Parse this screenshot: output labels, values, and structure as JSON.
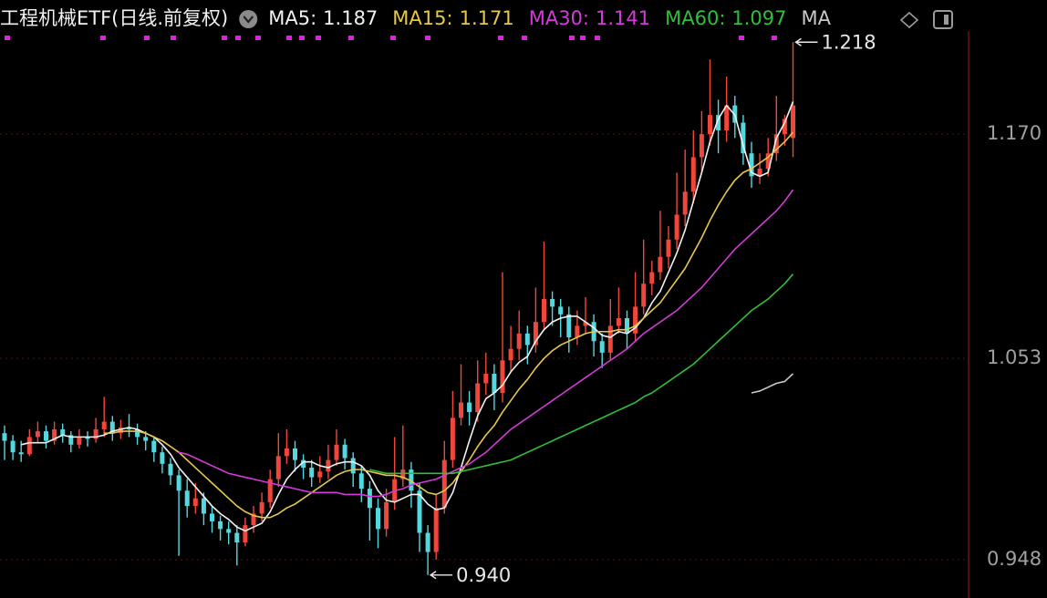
{
  "chart_data": {
    "type": "candlestick",
    "title": "工程机械ETF(日线.前复权)",
    "up_color": "#f0463c",
    "down_color": "#54d8e0",
    "ylim": [
      0.928,
      1.24
    ],
    "yticks": [
      0.948,
      1.053,
      {
        "value": 1.17,
        "label": "1.170"
      }
    ],
    "grid": true,
    "annotations": [
      {
        "value": 1.218,
        "label": "1.218",
        "at": "high"
      },
      {
        "value": 0.94,
        "label": "0.940",
        "at": "low"
      }
    ],
    "ohlc": [
      [
        1.014,
        1.018,
        1.0,
        1.01
      ],
      [
        1.01,
        1.013,
        1.0,
        1.004
      ],
      [
        1.004,
        1.01,
        0.999,
        1.003
      ],
      [
        1.003,
        1.016,
        1.002,
        1.012
      ],
      [
        1.012,
        1.02,
        1.009,
        1.015
      ],
      [
        1.015,
        1.018,
        1.006,
        1.01
      ],
      [
        1.01,
        1.02,
        1.008,
        1.016
      ],
      [
        1.016,
        1.019,
        1.009,
        1.013
      ],
      [
        1.013,
        1.015,
        1.004,
        1.008
      ],
      [
        1.008,
        1.016,
        1.006,
        1.012
      ],
      [
        1.012,
        1.015,
        1.007,
        1.011
      ],
      [
        1.011,
        1.022,
        1.009,
        1.016
      ],
      [
        1.016,
        1.033,
        1.012,
        1.02
      ],
      [
        1.02,
        1.023,
        1.01,
        1.014
      ],
      [
        1.014,
        1.021,
        1.011,
        1.017
      ],
      [
        1.017,
        1.024,
        1.012,
        1.016
      ],
      [
        1.016,
        1.019,
        1.008,
        1.012
      ],
      [
        1.012,
        1.015,
        1.005,
        1.01
      ],
      [
        1.01,
        1.012,
        0.999,
        1.004
      ],
      [
        1.004,
        1.007,
        0.993,
        0.998
      ],
      [
        0.998,
        1.001,
        0.987,
        0.992
      ],
      [
        0.992,
        0.995,
        0.95,
        0.984
      ],
      [
        0.984,
        0.99,
        0.97,
        0.976
      ],
      [
        0.976,
        0.988,
        0.972,
        0.98
      ],
      [
        0.98,
        0.983,
        0.966,
        0.972
      ],
      [
        0.972,
        0.976,
        0.962,
        0.968
      ],
      [
        0.968,
        0.971,
        0.958,
        0.964
      ],
      [
        0.964,
        0.968,
        0.956,
        0.962
      ],
      [
        0.962,
        0.966,
        0.945,
        0.957
      ],
      [
        0.957,
        0.97,
        0.955,
        0.966
      ],
      [
        0.966,
        0.976,
        0.962,
        0.972
      ],
      [
        0.972,
        0.983,
        0.968,
        0.978
      ],
      [
        0.978,
        0.995,
        0.975,
        0.99
      ],
      [
        0.99,
        1.014,
        0.986,
        1.002
      ],
      [
        1.002,
        1.016,
        0.998,
        1.006
      ],
      [
        1.006,
        1.01,
        0.994,
        1.0
      ],
      [
        1.0,
        1.003,
        0.99,
        0.996
      ],
      [
        0.996,
        1.0,
        0.986,
        0.991
      ],
      [
        0.991,
        1.002,
        0.988,
        0.994
      ],
      [
        0.994,
        1.008,
        0.99,
        1.0
      ],
      [
        1.0,
        1.016,
        0.997,
        1.008
      ],
      [
        1.008,
        1.011,
        0.995,
        1.001
      ],
      [
        1.001,
        1.004,
        0.986,
        0.993
      ],
      [
        0.993,
        0.997,
        0.978,
        0.985
      ],
      [
        0.985,
        0.989,
        0.958,
        0.975
      ],
      [
        0.975,
        0.98,
        0.954,
        0.964
      ],
      [
        0.964,
        0.985,
        0.96,
        0.978
      ],
      [
        0.978,
        1.012,
        0.974,
        0.99
      ],
      [
        0.99,
        1.018,
        0.986,
        0.995
      ],
      [
        0.995,
        0.999,
        0.975,
        0.984
      ],
      [
        0.984,
        0.988,
        0.952,
        0.962
      ],
      [
        0.962,
        0.966,
        0.94,
        0.952
      ],
      [
        0.952,
        0.982,
        0.948,
        0.975
      ],
      [
        0.975,
        1.01,
        0.972,
        1.0
      ],
      [
        1.0,
        1.036,
        0.996,
        1.022
      ],
      [
        1.022,
        1.05,
        1.018,
        1.03
      ],
      [
        1.03,
        1.036,
        1.018,
        1.025
      ],
      [
        1.025,
        1.052,
        1.02,
        1.04
      ],
      [
        1.04,
        1.056,
        1.034,
        1.045
      ],
      [
        1.045,
        1.05,
        1.026,
        1.035
      ],
      [
        1.035,
        1.098,
        1.03,
        1.052
      ],
      [
        1.052,
        1.07,
        1.046,
        1.058
      ],
      [
        1.058,
        1.078,
        1.052,
        1.066
      ],
      [
        1.066,
        1.07,
        1.05,
        1.06
      ],
      [
        1.06,
        1.09,
        1.056,
        1.072
      ],
      [
        1.072,
        1.114,
        1.068,
        1.084
      ],
      [
        1.084,
        1.088,
        1.07,
        1.08
      ],
      [
        1.08,
        1.084,
        1.064,
        1.076
      ],
      [
        1.076,
        1.08,
        1.056,
        1.064
      ],
      [
        1.064,
        1.078,
        1.06,
        1.07
      ],
      [
        1.07,
        1.085,
        1.066,
        1.072
      ],
      [
        1.072,
        1.076,
        1.054,
        1.062
      ],
      [
        1.062,
        1.066,
        1.048,
        1.056
      ],
      [
        1.056,
        1.084,
        1.052,
        1.07
      ],
      [
        1.07,
        1.09,
        1.066,
        1.074
      ],
      [
        1.074,
        1.078,
        1.058,
        1.066
      ],
      [
        1.066,
        1.098,
        1.062,
        1.08
      ],
      [
        1.08,
        1.115,
        1.076,
        1.092
      ],
      [
        1.092,
        1.104,
        1.086,
        1.098
      ],
      [
        1.098,
        1.13,
        1.094,
        1.106
      ],
      [
        1.106,
        1.122,
        1.1,
        1.115
      ],
      [
        1.115,
        1.15,
        1.11,
        1.128
      ],
      [
        1.128,
        1.162,
        1.122,
        1.14
      ],
      [
        1.14,
        1.172,
        1.134,
        1.158
      ],
      [
        1.158,
        1.182,
        1.15,
        1.17
      ],
      [
        1.17,
        1.209,
        1.164,
        1.18
      ],
      [
        1.18,
        1.188,
        1.16,
        1.172
      ],
      [
        1.172,
        1.2,
        1.166,
        1.185
      ],
      [
        1.185,
        1.19,
        1.168,
        1.176
      ],
      [
        1.176,
        1.18,
        1.154,
        1.16
      ],
      [
        1.16,
        1.166,
        1.142,
        1.148
      ],
      [
        1.148,
        1.16,
        1.144,
        1.152
      ],
      [
        1.152,
        1.168,
        1.148,
        1.16
      ],
      [
        1.16,
        1.19,
        1.156,
        1.17
      ],
      [
        1.17,
        1.18,
        1.164,
        1.178
      ],
      [
        1.168,
        1.218,
        1.158,
        1.185
      ]
    ],
    "series": [
      {
        "name": "MA5:",
        "color": "#f2f2f2",
        "last": 1.187,
        "values": [
          null,
          null,
          1.008,
          1.009,
          1.009,
          1.009,
          1.011,
          1.013,
          1.012,
          1.012,
          1.012,
          1.012,
          1.013,
          1.015,
          1.016,
          1.017,
          1.016,
          1.014,
          1.012,
          1.008,
          1.003,
          0.996,
          0.991,
          0.986,
          0.981,
          0.976,
          0.972,
          0.969,
          0.965,
          0.963,
          0.965,
          0.967,
          0.973,
          0.982,
          0.99,
          0.995,
          0.999,
          0.999,
          0.997,
          0.996,
          0.998,
          0.999,
          0.999,
          0.997,
          0.992,
          0.984,
          0.979,
          0.978,
          0.98,
          0.982,
          0.982,
          0.977,
          0.974,
          0.975,
          0.983,
          0.996,
          1.01,
          1.023,
          1.032,
          1.035,
          1.039,
          1.046,
          1.051,
          1.054,
          1.062,
          1.068,
          1.072,
          1.074,
          1.075,
          1.075,
          1.072,
          1.069,
          1.065,
          1.064,
          1.067,
          1.066,
          1.069,
          1.074,
          1.082,
          1.088,
          1.098,
          1.108,
          1.12,
          1.135,
          1.15,
          1.166,
          1.178,
          1.185,
          1.18,
          1.164,
          1.15,
          1.148,
          1.15,
          1.168,
          1.176,
          1.187
        ]
      },
      {
        "name": "MA15:",
        "color": "#e6c84a",
        "last": 1.171,
        "values": [
          null,
          null,
          null,
          null,
          null,
          null,
          null,
          null,
          null,
          null,
          null,
          null,
          1.014,
          1.014,
          1.015,
          1.015,
          1.015,
          1.014,
          1.012,
          1.01,
          1.007,
          1.004,
          1.0,
          0.996,
          0.992,
          0.988,
          0.984,
          0.98,
          0.976,
          0.973,
          0.971,
          0.97,
          0.97,
          0.972,
          0.975,
          0.977,
          0.98,
          0.983,
          0.986,
          0.989,
          0.992,
          0.994,
          0.995,
          0.995,
          0.994,
          0.993,
          0.992,
          0.992,
          0.991,
          0.989,
          0.986,
          0.983,
          0.982,
          0.984,
          0.988,
          0.994,
          1.0,
          1.007,
          1.013,
          1.018,
          1.025,
          1.031,
          1.037,
          1.042,
          1.048,
          1.053,
          1.057,
          1.06,
          1.062,
          1.064,
          1.066,
          1.067,
          1.067,
          1.067,
          1.068,
          1.068,
          1.07,
          1.074,
          1.078,
          1.082,
          1.088,
          1.094,
          1.1,
          1.108,
          1.116,
          1.125,
          1.133,
          1.14,
          1.146,
          1.15,
          1.152,
          1.155,
          1.158,
          1.162,
          1.166,
          1.171
        ]
      },
      {
        "name": "MA30:",
        "color": "#d43ad8",
        "last": 1.141,
        "values": [
          null,
          null,
          null,
          null,
          null,
          null,
          null,
          null,
          null,
          null,
          null,
          null,
          null,
          null,
          null,
          null,
          null,
          null,
          null,
          null,
          null,
          1.004,
          1.003,
          1.001,
          0.999,
          0.997,
          0.995,
          0.993,
          0.992,
          0.991,
          0.99,
          0.989,
          0.988,
          0.987,
          0.986,
          0.985,
          0.984,
          0.983,
          0.983,
          0.983,
          0.983,
          0.982,
          0.982,
          0.982,
          0.981,
          0.981,
          0.982,
          0.984,
          0.985,
          0.987,
          0.988,
          0.989,
          0.99,
          0.992,
          0.994,
          0.996,
          0.998,
          1.001,
          1.004,
          1.008,
          1.012,
          1.016,
          1.019,
          1.022,
          1.025,
          1.028,
          1.031,
          1.034,
          1.037,
          1.04,
          1.043,
          1.046,
          1.049,
          1.052,
          1.055,
          1.058,
          1.062,
          1.066,
          1.069,
          1.072,
          1.075,
          1.078,
          1.082,
          1.086,
          1.09,
          1.095,
          1.1,
          1.105,
          1.11,
          1.114,
          1.118,
          1.122,
          1.126,
          1.13,
          1.135,
          1.141
        ]
      },
      {
        "name": "MA60:",
        "color": "#2fbf3a",
        "last": 1.097,
        "values": [
          null,
          null,
          null,
          null,
          null,
          null,
          null,
          null,
          null,
          null,
          null,
          null,
          null,
          null,
          null,
          null,
          null,
          null,
          null,
          null,
          null,
          null,
          null,
          null,
          null,
          null,
          null,
          null,
          null,
          null,
          null,
          null,
          null,
          null,
          null,
          null,
          null,
          null,
          null,
          null,
          null,
          null,
          null,
          null,
          0.995,
          0.994,
          0.993,
          0.993,
          0.993,
          0.993,
          0.993,
          0.993,
          0.993,
          0.993,
          0.993,
          0.994,
          0.995,
          0.996,
          0.997,
          0.998,
          0.999,
          1.0,
          1.002,
          1.004,
          1.006,
          1.008,
          1.01,
          1.012,
          1.014,
          1.016,
          1.018,
          1.02,
          1.022,
          1.024,
          1.026,
          1.028,
          1.03,
          1.033,
          1.035,
          1.038,
          1.041,
          1.044,
          1.047,
          1.05,
          1.054,
          1.058,
          1.062,
          1.066,
          1.07,
          1.074,
          1.078,
          1.081,
          1.084,
          1.088,
          1.092,
          1.097
        ]
      },
      {
        "name": "MA",
        "color": "#c8c8c8",
        "values": [
          null,
          null,
          null,
          null,
          null,
          null,
          null,
          null,
          null,
          null,
          null,
          null,
          null,
          null,
          null,
          null,
          null,
          null,
          null,
          null,
          null,
          null,
          null,
          null,
          null,
          null,
          null,
          null,
          null,
          null,
          null,
          null,
          null,
          null,
          null,
          null,
          null,
          null,
          null,
          null,
          null,
          null,
          null,
          null,
          null,
          null,
          null,
          null,
          null,
          null,
          null,
          null,
          null,
          null,
          null,
          null,
          null,
          null,
          null,
          null,
          null,
          null,
          null,
          null,
          null,
          null,
          null,
          null,
          null,
          null,
          null,
          null,
          null,
          null,
          null,
          null,
          null,
          null,
          null,
          null,
          null,
          null,
          null,
          null,
          null,
          null,
          null,
          null,
          null,
          null,
          1.035,
          1.036,
          1.038,
          1.04,
          1.041,
          1.045
        ]
      }
    ]
  }
}
